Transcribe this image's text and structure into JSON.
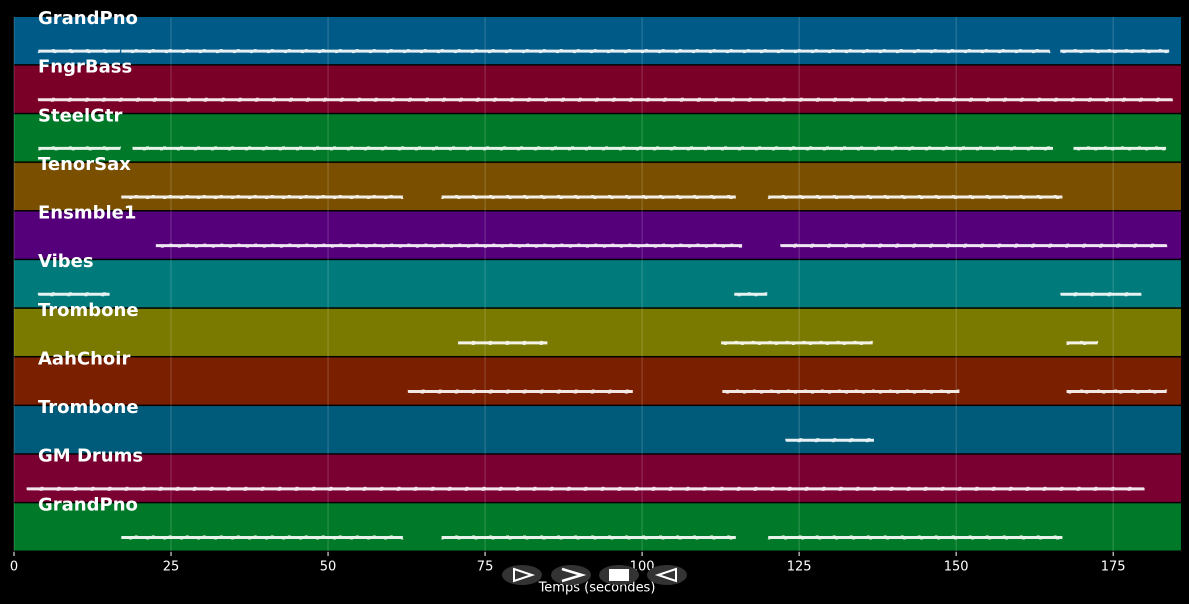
{
  "chart_data": {
    "type": "piano-roll",
    "x_label": "Temps (secondes)",
    "xlim": [
      0,
      185.8
    ],
    "xticks": [
      0,
      25,
      50,
      75,
      100,
      125,
      150,
      175
    ],
    "grid": true,
    "series": [
      {
        "name": "GrandPno",
        "color": "#005a87",
        "spans": [
          [
            3.8,
            16.9
          ],
          [
            17,
            165
          ],
          [
            166.5,
            184
          ]
        ]
      },
      {
        "name": "FngrBass",
        "color": "#7a0028",
        "spans": [
          [
            3.8,
            184.5
          ]
        ]
      },
      {
        "name": "SteelGtr",
        "color": "#007a28",
        "spans": [
          [
            3.8,
            17
          ],
          [
            18.8,
            165.5
          ],
          [
            168.6,
            183.5
          ]
        ]
      },
      {
        "name": "TenorSax",
        "color": "#7a5000",
        "spans": [
          [
            17,
            62
          ],
          [
            68,
            115
          ],
          [
            120,
            167
          ]
        ]
      },
      {
        "name": "Ensmble1",
        "color": "#55007a",
        "spans": [
          [
            22.5,
            116
          ],
          [
            122,
            183.6
          ]
        ]
      },
      {
        "name": "Vibes",
        "color": "#007a7a",
        "spans": [
          [
            3.8,
            15.3
          ],
          [
            114.6,
            120
          ],
          [
            166.6,
            179.5
          ]
        ]
      },
      {
        "name": "Trombone",
        "color": "#7a7a00",
        "spans": [
          [
            70.7,
            85
          ],
          [
            112.5,
            136.8
          ],
          [
            167.5,
            172.6
          ]
        ]
      },
      {
        "name": "AahChoir",
        "color": "#7a2000",
        "spans": [
          [
            62.7,
            98.6
          ],
          [
            112.7,
            150.6
          ],
          [
            167.5,
            183.6
          ]
        ]
      },
      {
        "name": "Trombone",
        "color": "#005a7a",
        "spans": [
          [
            122.8,
            137
          ]
        ]
      },
      {
        "name": "GM Drums",
        "color": "#7a0032",
        "spans": [
          [
            2,
            180
          ]
        ]
      },
      {
        "name": "GrandPno",
        "color": "#007a28",
        "spans": [
          [
            17,
            62
          ],
          [
            68,
            115
          ],
          [
            120,
            167
          ]
        ]
      }
    ]
  }
}
